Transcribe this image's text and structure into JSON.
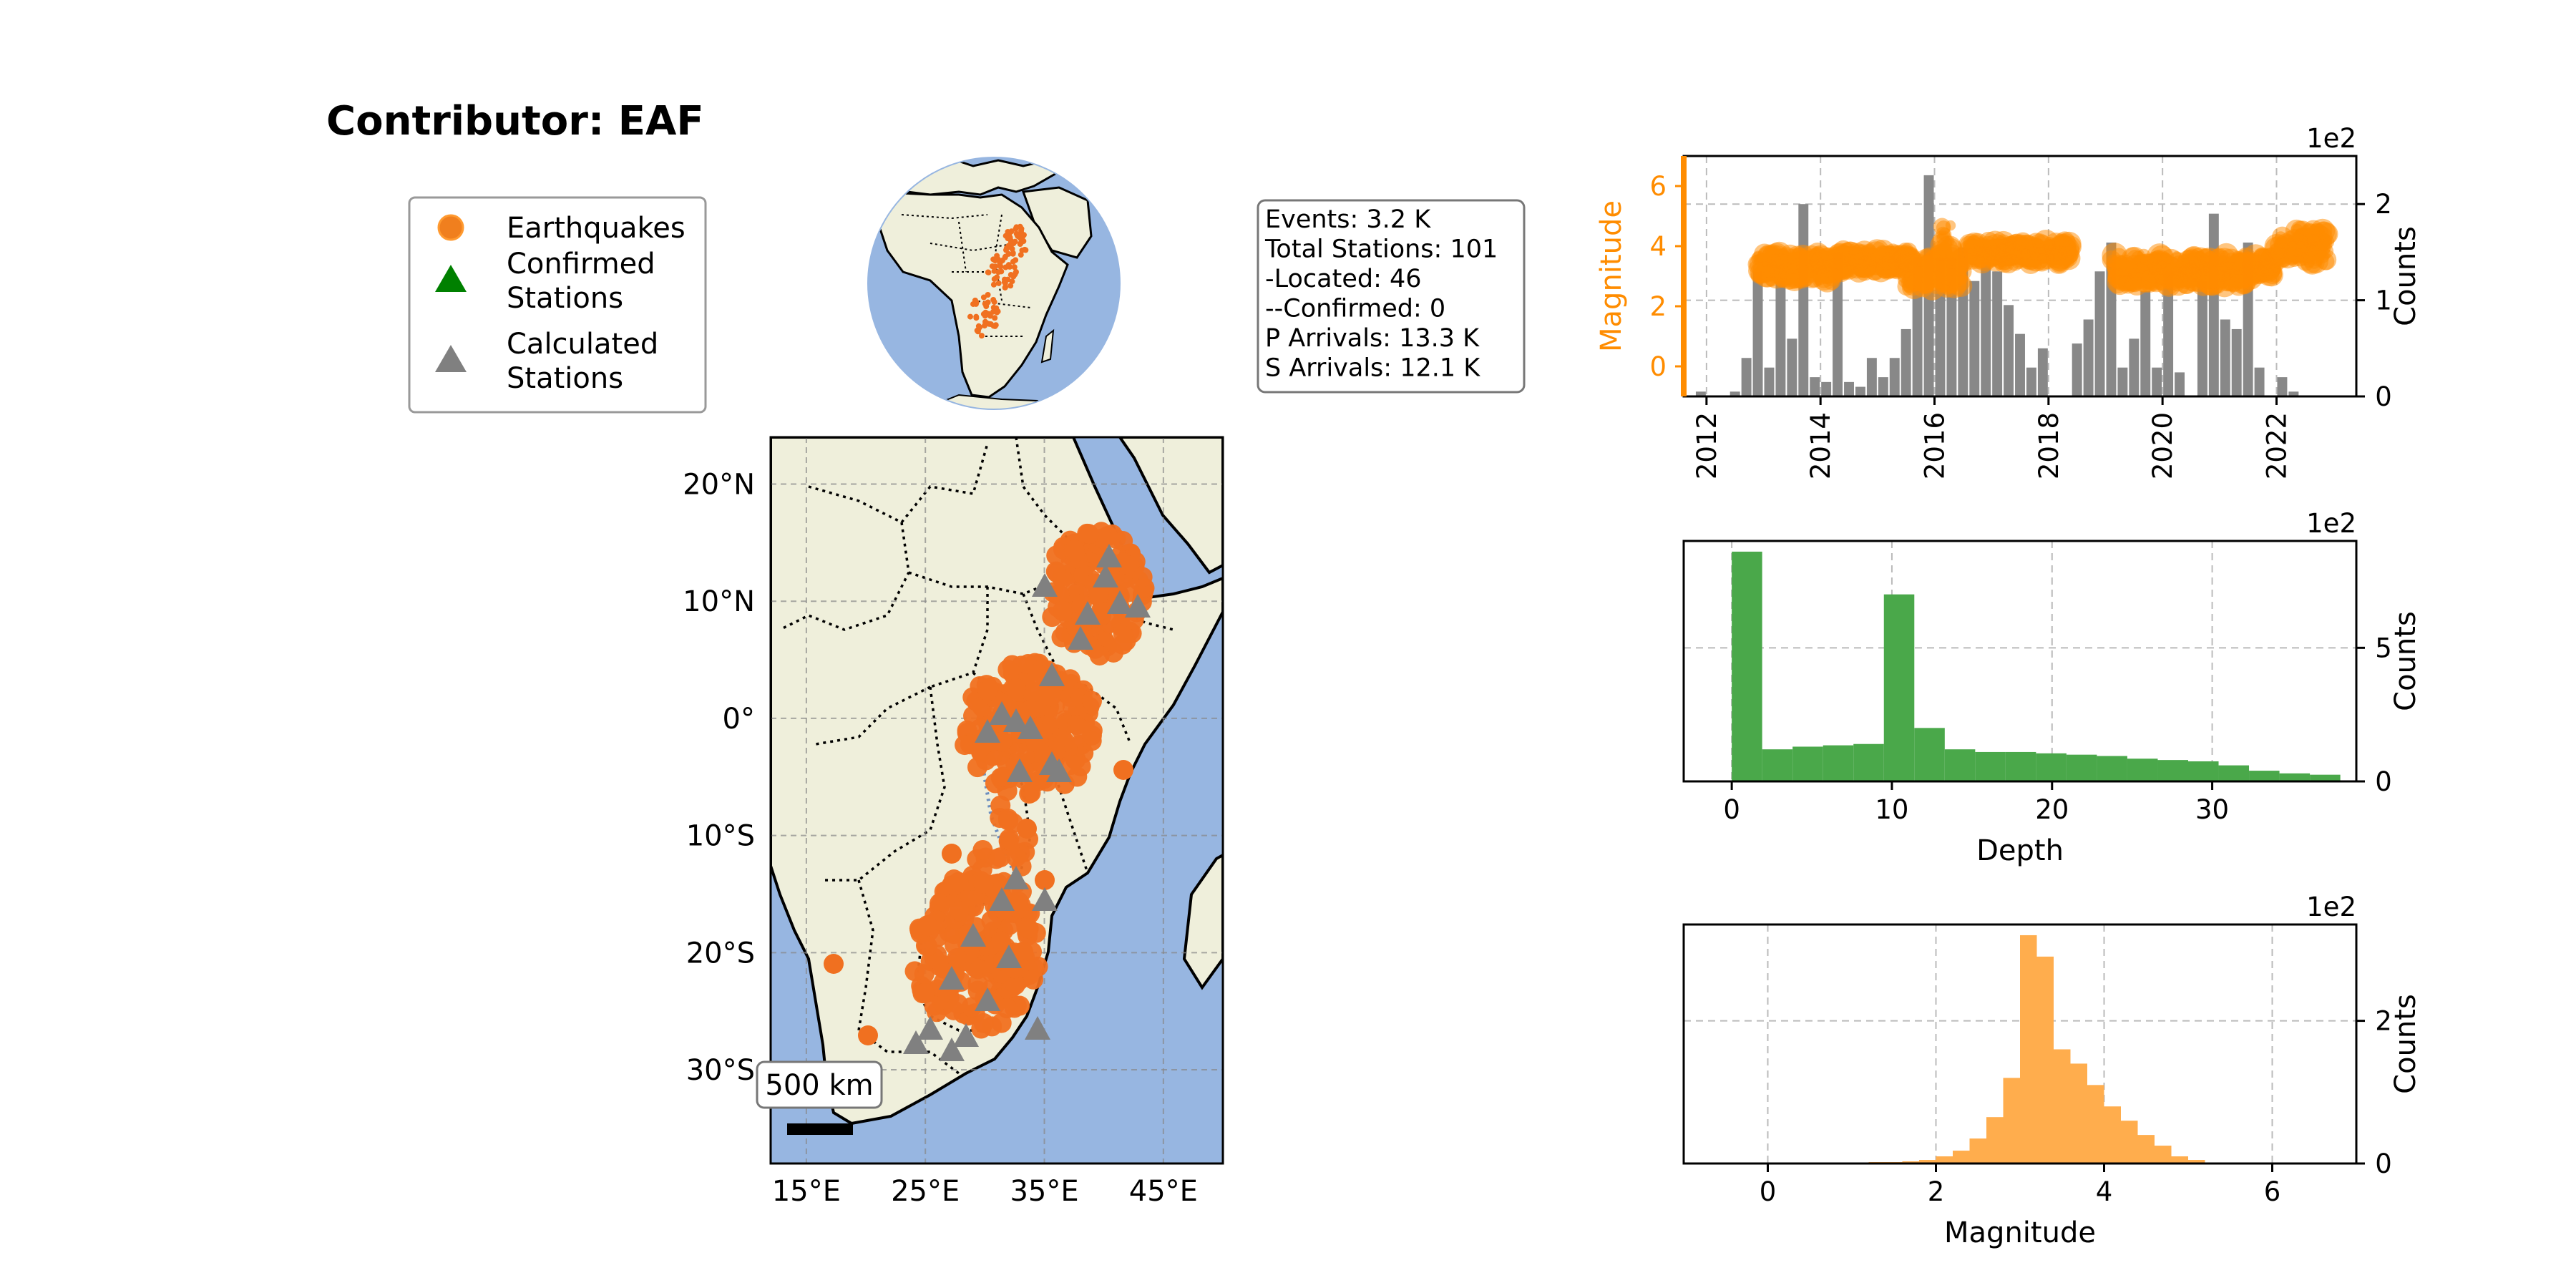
{
  "title": "Contributor: EAF",
  "legend": {
    "items": [
      {
        "label_lines": [
          "Earthquakes"
        ],
        "marker": "circle",
        "color": "#f07f1e"
      },
      {
        "label_lines": [
          "Confirmed",
          "Stations"
        ],
        "marker": "triangle",
        "color": "#008000"
      },
      {
        "label_lines": [
          "Calculated",
          "Stations"
        ],
        "marker": "triangle",
        "color": "#808080"
      }
    ]
  },
  "info_box": {
    "lines": [
      "Events: 3.2 K",
      "Total Stations: 101",
      " -Located: 46",
      " --Confirmed: 0",
      "P Arrivals: 13.3 K",
      "S Arrivals: 12.1 K"
    ]
  },
  "colors": {
    "land": "#efefdb",
    "ocean": "#97b6e1",
    "quake": "#f07020",
    "station": "#808080",
    "mag_axis": "#ff8c00",
    "depth_bar": "#4aa84a",
    "mag_bar": "#ffad4d",
    "time_bar": "#888888"
  },
  "map": {
    "lat_ticks": [
      "20°N",
      "10°N",
      "0°",
      "10°S",
      "20°S",
      "30°S"
    ],
    "lon_ticks": [
      "15°E",
      "25°E",
      "35°E",
      "45°E"
    ],
    "scale_label": "500 km",
    "extent": {
      "lon": [
        12,
        50
      ],
      "lat": [
        -38,
        24
      ]
    }
  },
  "chart_data": [
    {
      "type": "scatter+bar",
      "title": "",
      "x_ticks": [
        "2012",
        "2014",
        "2016",
        "2018",
        "2020",
        "2022"
      ],
      "xlim": [
        2011.6,
        2023.4
      ],
      "y_left_label": "Magnitude",
      "y_left_ticks": [
        "0",
        "2",
        "4",
        "6"
      ],
      "y_left_lim": [
        -1,
        7
      ],
      "y_right_label": "Counts",
      "y_right_ticks": [
        "0",
        "1",
        "2"
      ],
      "y_right_lim": [
        0,
        2.5
      ],
      "multiplier": "1e2",
      "bins_start": 2011.8,
      "bin_width": 0.2,
      "counts": [
        0.05,
        0,
        0,
        0.05,
        0.4,
        1.3,
        0.3,
        1.2,
        0.6,
        2,
        0.2,
        0.15,
        1.5,
        0.15,
        0.1,
        0.4,
        0.2,
        0.4,
        0.7,
        1.45,
        2.3,
        1.45,
        1.45,
        1.55,
        1.2,
        1.4,
        1.3,
        0.95,
        0.65,
        0.3,
        0.5,
        0,
        0,
        0.55,
        0.8,
        1.3,
        1.6,
        0.3,
        0.6,
        1.1,
        0.3,
        1.3,
        0.25,
        0,
        1.2,
        1.9,
        0.8,
        0.7,
        1.6,
        0.3,
        0,
        0.2,
        0.05
      ],
      "scatter_segments": [
        [
          2012.9,
          2014.4,
          3.3,
          0.45
        ],
        [
          2014.3,
          2015.6,
          3.5,
          0.35
        ],
        [
          2015.5,
          2016.5,
          3.1,
          0.5
        ],
        [
          2016.1,
          2016.3,
          4.0,
          0.7
        ],
        [
          2016.6,
          2018.4,
          3.8,
          0.35
        ],
        [
          2019.1,
          2021.5,
          3.2,
          0.5
        ],
        [
          2021.5,
          2022,
          3.3,
          0.35
        ],
        [
          2022,
          2022.9,
          4.0,
          0.55
        ]
      ]
    },
    {
      "type": "bar",
      "title": "",
      "xlabel": "Depth",
      "ylabel": "Counts",
      "multiplier": "1e2",
      "x_ticks": [
        "0",
        "10",
        "20",
        "30"
      ],
      "xlim": [
        -3,
        39
      ],
      "y_ticks": [
        "0",
        "5"
      ],
      "ylim": [
        0,
        9
      ],
      "bins_start": 0,
      "bin_width": 1.9,
      "values": [
        8.6,
        1.2,
        1.3,
        1.35,
        1.4,
        7.0,
        2.0,
        1.2,
        1.1,
        1.1,
        1.05,
        1.0,
        0.95,
        0.85,
        0.8,
        0.75,
        0.6,
        0.4,
        0.3,
        0.25
      ]
    },
    {
      "type": "bar",
      "title": "",
      "xlabel": "Magnitude",
      "ylabel": "Counts",
      "multiplier": "1e2",
      "x_ticks": [
        "0",
        "2",
        "4",
        "6"
      ],
      "xlim": [
        -1,
        7
      ],
      "y_ticks": [
        "0",
        "2"
      ],
      "ylim": [
        0,
        3.35
      ],
      "bins_start": 1.2,
      "bin_width": 0.2,
      "values": [
        0.02,
        0.02,
        0.03,
        0.05,
        0.1,
        0.18,
        0.35,
        0.65,
        1.2,
        3.2,
        2.9,
        1.6,
        1.4,
        1.1,
        0.8,
        0.6,
        0.4,
        0.25,
        0.1,
        0.05
      ]
    }
  ]
}
